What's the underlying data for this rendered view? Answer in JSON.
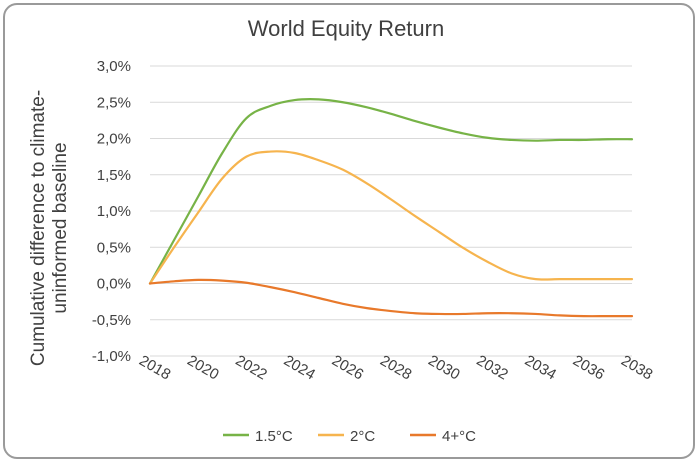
{
  "chart_data": {
    "type": "line",
    "title": "World Equity Return",
    "ylabel_lines": [
      "Cumulative difference to climate-",
      "uninformed baseline"
    ],
    "xlabel": "",
    "x": [
      2018,
      2019,
      2020,
      2021,
      2022,
      2023,
      2024,
      2025,
      2026,
      2027,
      2028,
      2029,
      2030,
      2031,
      2032,
      2033,
      2034,
      2035,
      2036,
      2037,
      2038
    ],
    "x_tick_labels": [
      "2018",
      "2020",
      "2022",
      "2024",
      "2026",
      "2028",
      "2030",
      "2032",
      "2034",
      "2036",
      "2038"
    ],
    "y_tick_labels": [
      "-1,0%",
      "-0,5%",
      "0,0%",
      "0,5%",
      "1,0%",
      "1,5%",
      "2,0%",
      "2,5%",
      "3,0%"
    ],
    "y_ticks": [
      -1.0,
      -0.5,
      0.0,
      0.5,
      1.0,
      1.5,
      2.0,
      2.5,
      3.0
    ],
    "ylim": [
      -1.0,
      3.0
    ],
    "xlim": [
      2018,
      2038
    ],
    "grid": "horizontal",
    "legend_position": "bottom",
    "series": [
      {
        "name": "1.5°C",
        "color": "#77b347",
        "values": [
          0.0,
          0.6,
          1.2,
          1.8,
          2.28,
          2.45,
          2.53,
          2.54,
          2.5,
          2.43,
          2.34,
          2.24,
          2.15,
          2.07,
          2.01,
          1.98,
          1.97,
          1.98,
          1.98,
          1.99,
          1.99
        ]
      },
      {
        "name": "2°C",
        "color": "#f6b44e",
        "values": [
          0.0,
          0.5,
          0.98,
          1.45,
          1.75,
          1.82,
          1.8,
          1.7,
          1.57,
          1.38,
          1.16,
          0.93,
          0.71,
          0.49,
          0.3,
          0.14,
          0.06,
          0.06,
          0.06,
          0.06,
          0.06
        ]
      },
      {
        "name": "4+°C",
        "color": "#e8792b",
        "values": [
          0.0,
          0.03,
          0.05,
          0.04,
          0.01,
          -0.05,
          -0.12,
          -0.2,
          -0.28,
          -0.34,
          -0.38,
          -0.41,
          -0.42,
          -0.42,
          -0.41,
          -0.41,
          -0.42,
          -0.44,
          -0.45,
          -0.45,
          -0.45
        ]
      }
    ]
  }
}
